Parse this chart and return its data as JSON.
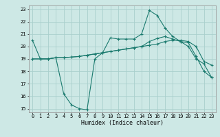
{
  "xlabel": "Humidex (Indice chaleur)",
  "bg_color": "#cde8e5",
  "line_color": "#1a7a6e",
  "grid_color": "#aacfcc",
  "xlim": [
    -0.5,
    23.5
  ],
  "ylim": [
    14.7,
    23.3
  ],
  "yticks": [
    15,
    16,
    17,
    18,
    19,
    20,
    21,
    22,
    23
  ],
  "xticks": [
    0,
    1,
    2,
    3,
    4,
    5,
    6,
    7,
    8,
    9,
    10,
    11,
    12,
    13,
    14,
    15,
    16,
    17,
    18,
    19,
    20,
    21,
    22,
    23
  ],
  "line1_x": [
    0,
    1,
    2,
    3,
    4,
    5,
    6,
    7,
    8,
    9,
    10,
    11,
    12,
    13,
    14,
    15,
    16,
    17,
    18,
    19,
    20,
    21,
    22,
    23
  ],
  "line1_y": [
    20.5,
    19.0,
    19.0,
    19.1,
    16.2,
    15.3,
    15.0,
    14.9,
    19.0,
    19.5,
    20.7,
    20.6,
    20.6,
    20.6,
    21.0,
    22.9,
    22.5,
    21.5,
    20.8,
    20.4,
    20.0,
    19.0,
    18.6,
    17.5
  ],
  "line2_x": [
    0,
    1,
    2,
    3,
    4,
    5,
    6,
    7,
    8,
    9,
    10,
    11,
    12,
    13,
    14,
    15,
    16,
    17,
    18,
    19,
    20,
    21,
    22,
    23
  ],
  "line2_y": [
    19.0,
    19.0,
    19.0,
    19.1,
    19.1,
    19.15,
    19.2,
    19.3,
    19.4,
    19.5,
    19.6,
    19.7,
    19.8,
    19.9,
    20.0,
    20.1,
    20.2,
    20.4,
    20.5,
    20.5,
    20.4,
    20.0,
    18.8,
    18.5
  ],
  "line3_x": [
    0,
    1,
    2,
    3,
    4,
    5,
    6,
    7,
    8,
    9,
    10,
    11,
    12,
    13,
    14,
    15,
    16,
    17,
    18,
    19,
    20,
    21,
    22,
    23
  ],
  "line3_y": [
    19.0,
    19.0,
    19.0,
    19.1,
    19.1,
    19.15,
    19.2,
    19.3,
    19.4,
    19.5,
    19.6,
    19.7,
    19.8,
    19.9,
    20.0,
    20.4,
    20.65,
    20.8,
    20.6,
    20.4,
    20.3,
    19.2,
    18.0,
    17.5
  ]
}
